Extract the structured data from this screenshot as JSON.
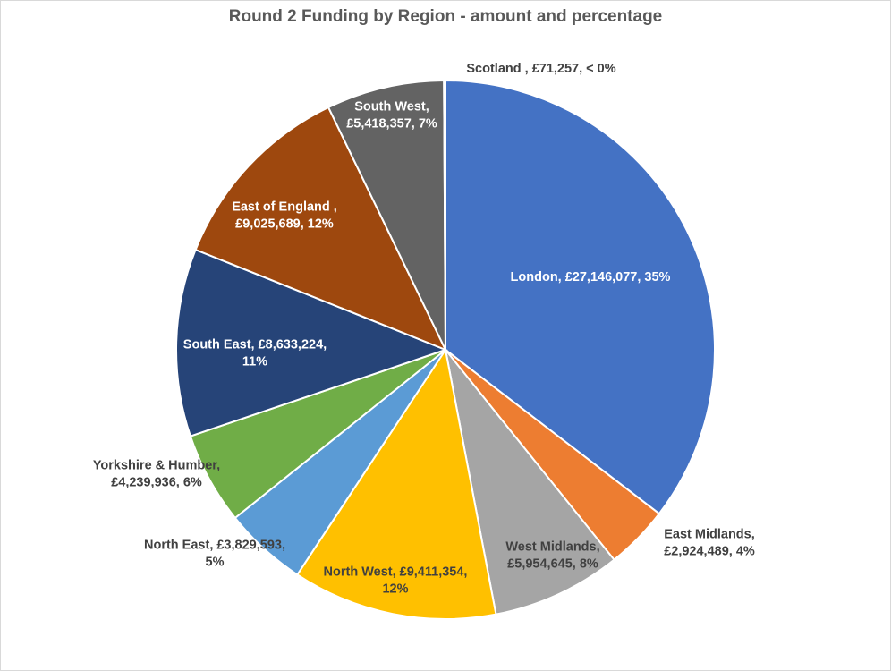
{
  "chart_data": {
    "type": "pie",
    "title": "Round 2 Funding by Region - amount and percentage",
    "start_angle_deg": 0,
    "direction": "clockwise",
    "slices": [
      {
        "name": "London",
        "value": 27146077,
        "label_lines": [
          "London, £27,146,077, 35%"
        ],
        "color": "#4472C4",
        "label_color": "#ffffff"
      },
      {
        "name": "East Midlands",
        "value": 2924489,
        "label_lines": [
          "East Midlands,",
          "£2,924,489, 4%"
        ],
        "color": "#ED7D31",
        "label_color": "#404040"
      },
      {
        "name": "West Midlands",
        "value": 5954645,
        "label_lines": [
          "West Midlands,",
          "£5,954,645, 8%"
        ],
        "color": "#A5A5A5",
        "label_color": "#404040"
      },
      {
        "name": "North West",
        "value": 9411354,
        "label_lines": [
          "North West, £9,411,354,",
          "12%"
        ],
        "color": "#FFC000",
        "label_color": "#404040"
      },
      {
        "name": "North East",
        "value": 3829593,
        "label_lines": [
          "North East, £3,829,593,",
          "5%"
        ],
        "color": "#5B9BD5",
        "label_color": "#404040"
      },
      {
        "name": "Yorkshire & Humber",
        "value": 4239936,
        "label_lines": [
          "Yorkshire & Humber,",
          "£4,239,936, 6%"
        ],
        "color": "#70AD47",
        "label_color": "#404040"
      },
      {
        "name": "South East",
        "value": 8633224,
        "label_lines": [
          "South East, £8,633,224,",
          "11%"
        ],
        "color": "#264478",
        "label_color": "#ffffff"
      },
      {
        "name": "East of England",
        "value": 9025689,
        "label_lines": [
          "East of England ,",
          "£9,025,689, 12%"
        ],
        "color": "#9E480E",
        "label_color": "#ffffff"
      },
      {
        "name": "South West",
        "value": 5418357,
        "label_lines": [
          "South West,",
          "£5,418,357, 7%"
        ],
        "color": "#636363",
        "label_color": "#ffffff"
      },
      {
        "name": "Scotland",
        "value": 71257,
        "label_lines": [
          "Scotland , £71,257, < 0%"
        ],
        "color": "#997300",
        "label_color": "#404040"
      }
    ]
  }
}
